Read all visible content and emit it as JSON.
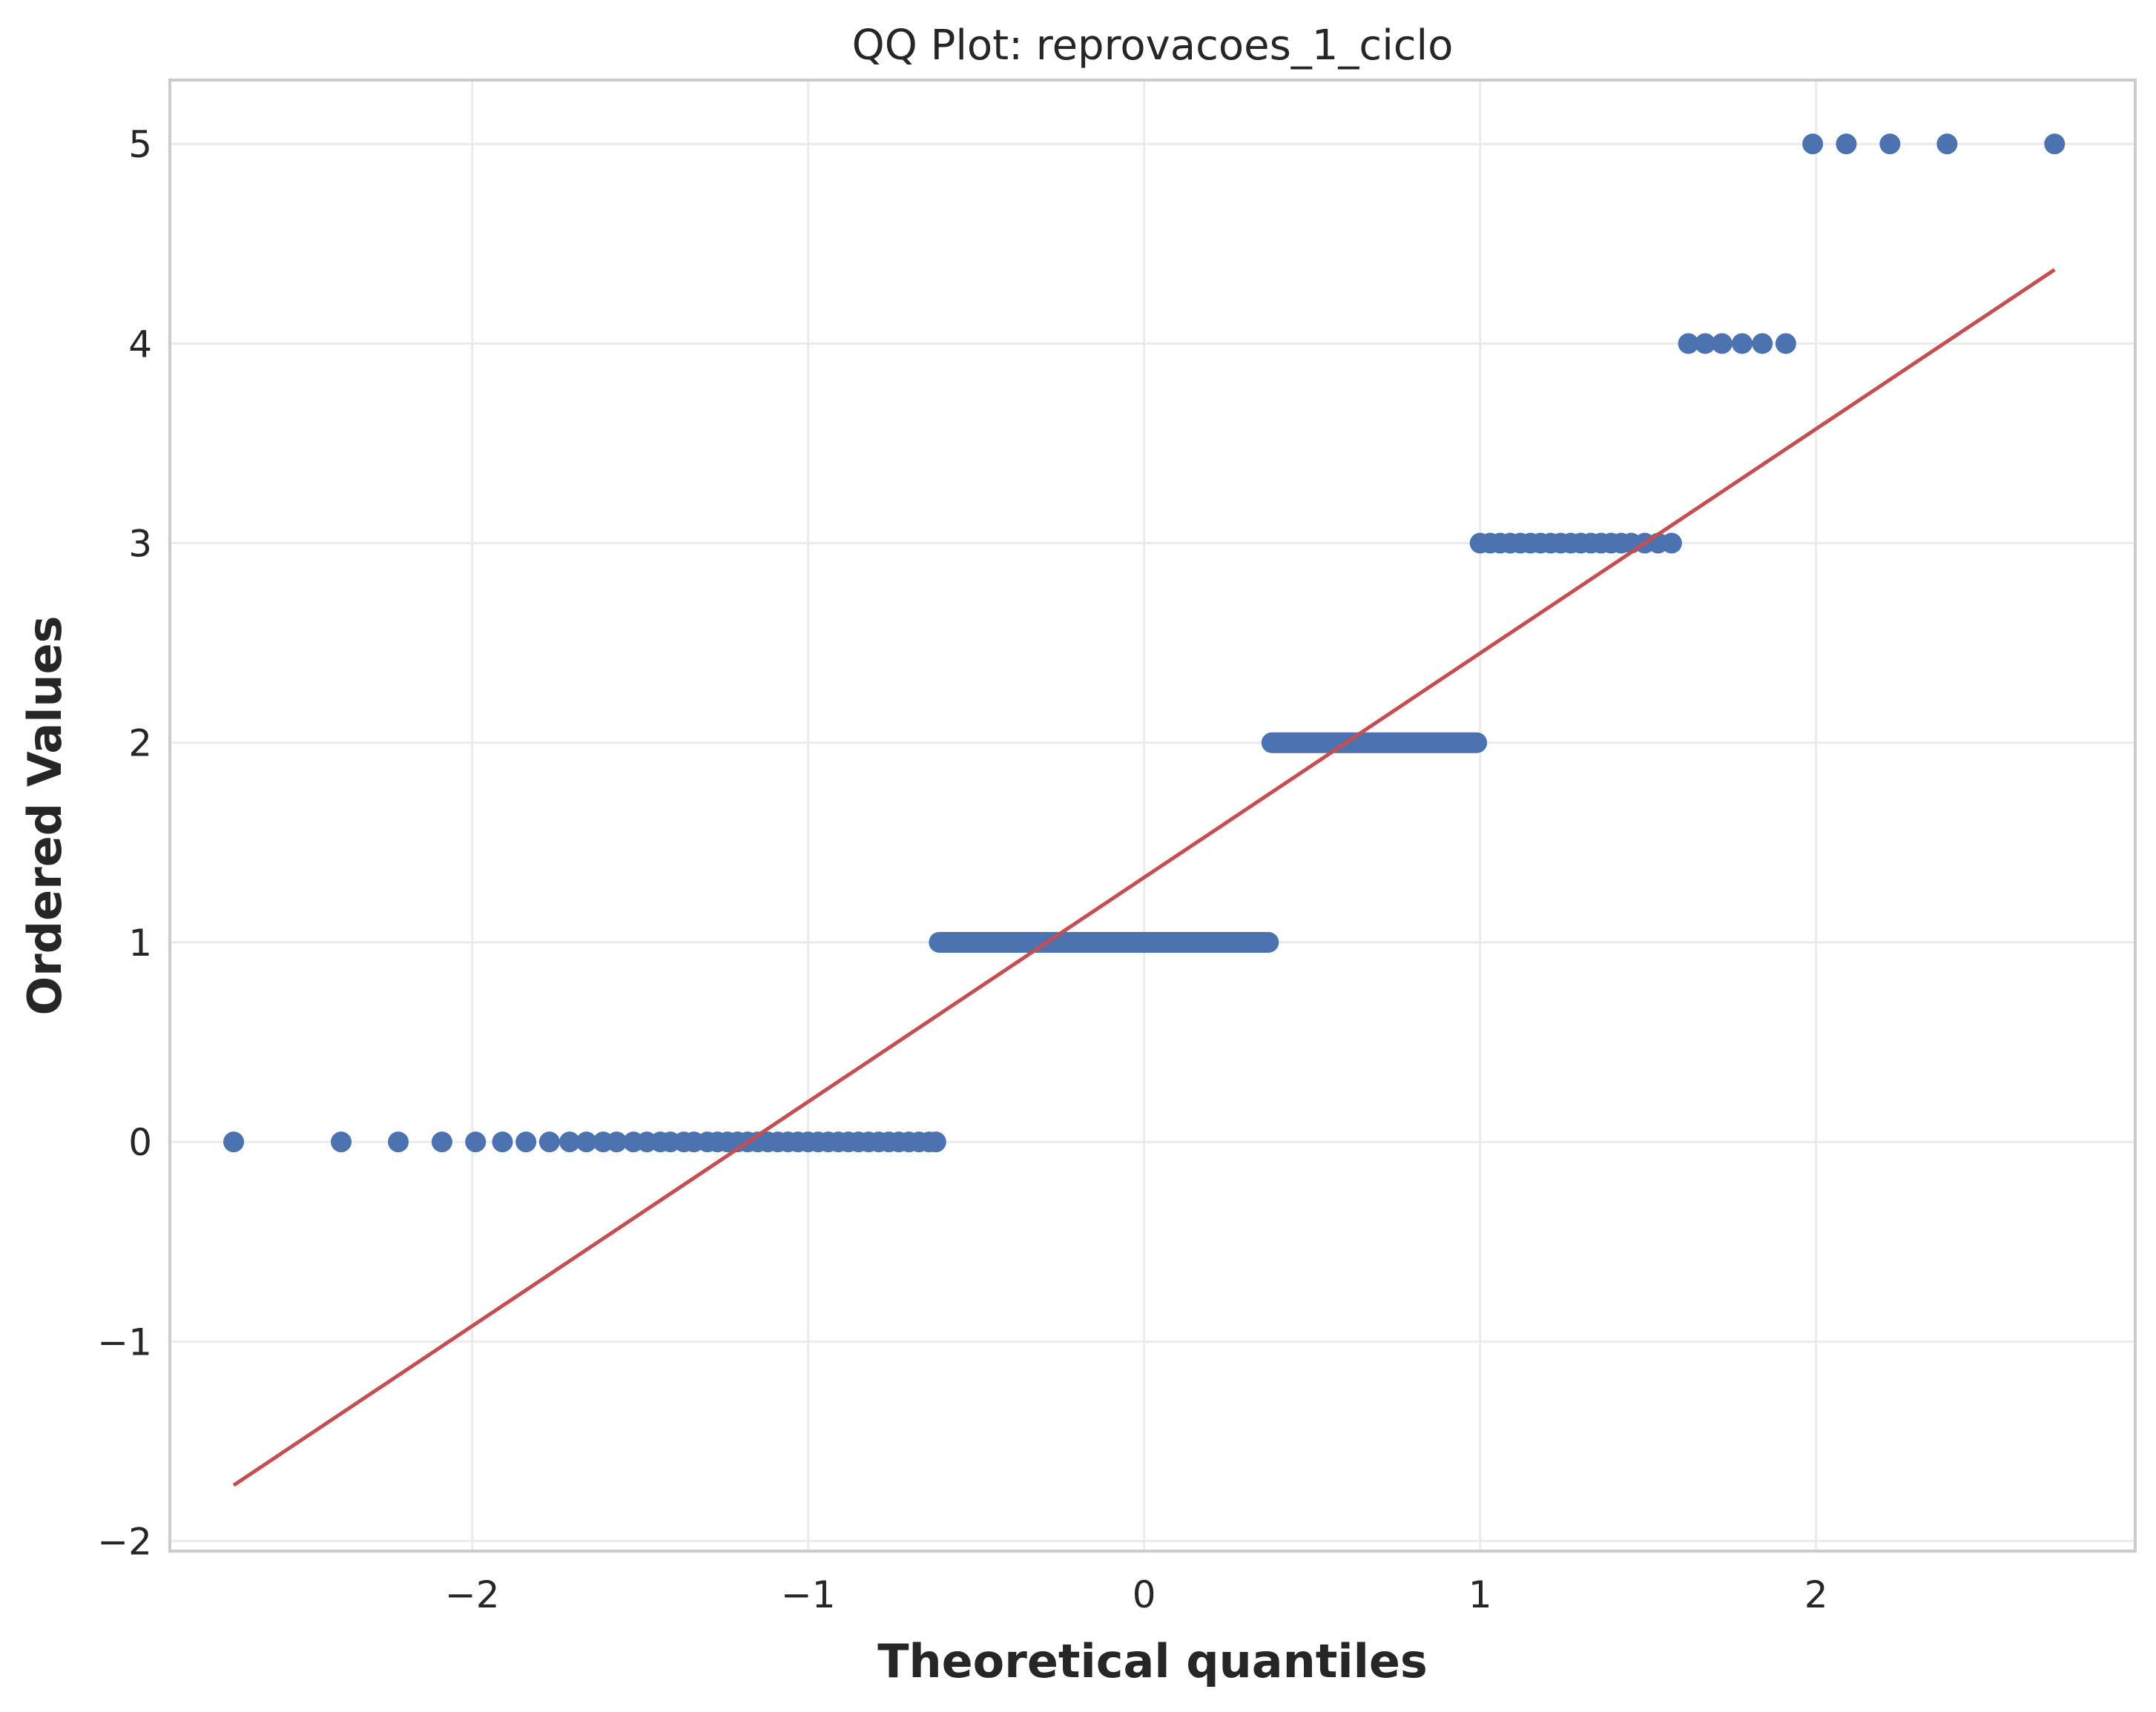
{
  "chart_data": {
    "type": "scatter",
    "title": "QQ Plot: reprovacoes_1_ciclo",
    "xlabel": "Theoretical quantiles",
    "ylabel": "Ordered Values",
    "xlim": [
      -2.9,
      2.95
    ],
    "ylim": [
      -2.05,
      5.32
    ],
    "xticks": [
      {
        "value": -2,
        "label": "−2"
      },
      {
        "value": -1,
        "label": "−1"
      },
      {
        "value": 0,
        "label": "0"
      },
      {
        "value": 1,
        "label": "1"
      },
      {
        "value": 2,
        "label": "2"
      }
    ],
    "yticks": [
      {
        "value": -2,
        "label": "−2"
      },
      {
        "value": -1,
        "label": "−1"
      },
      {
        "value": 0,
        "label": "0"
      },
      {
        "value": 1,
        "label": "1"
      },
      {
        "value": 2,
        "label": "2"
      },
      {
        "value": 3,
        "label": "3"
      },
      {
        "value": 4,
        "label": "4"
      },
      {
        "value": 5,
        "label": "5"
      }
    ],
    "grid": true,
    "colors": {
      "points": "#4c72b0",
      "fit_line": "#c44e52",
      "grid": "#ebebeb",
      "spine": "#cccccc",
      "text": "#262626"
    },
    "series": [
      {
        "kind": "points",
        "groups": [
          {
            "y": 0,
            "x": [
              -2.71,
              -2.39,
              -2.22,
              -2.09,
              -1.99,
              -1.91,
              -1.84,
              -1.77,
              -1.71,
              -1.66,
              -1.61,
              -1.57,
              -1.52,
              -1.48,
              -1.44,
              -1.41,
              -1.37,
              -1.34,
              -1.3,
              -1.27,
              -1.24,
              -1.21,
              -1.18,
              -1.15,
              -1.12,
              -1.09,
              -1.06,
              -1.03,
              -1.0,
              -0.97,
              -0.94,
              -0.91,
              -0.88,
              -0.85,
              -0.82,
              -0.79,
              -0.76,
              -0.73,
              -0.7,
              -0.67,
              -0.64,
              -0.62
            ]
          },
          {
            "y": 1,
            "x_range": [
              -0.61,
              0.37
            ]
          },
          {
            "y": 2,
            "x_range": [
              0.38,
              0.99
            ]
          },
          {
            "y": 3,
            "x": [
              1.0,
              1.03,
              1.06,
              1.09,
              1.12,
              1.15,
              1.18,
              1.21,
              1.24,
              1.27,
              1.3,
              1.33,
              1.36,
              1.39,
              1.42,
              1.45,
              1.49,
              1.53,
              1.57
            ]
          },
          {
            "y": 4,
            "x": [
              1.62,
              1.67,
              1.72,
              1.78,
              1.84,
              1.91
            ]
          },
          {
            "y": 5,
            "x": [
              1.99,
              2.09,
              2.22,
              2.39,
              2.71
            ]
          }
        ]
      },
      {
        "kind": "line",
        "x": [
          -2.71,
          2.71
        ],
        "y": [
          -1.72,
          4.37
        ]
      }
    ]
  }
}
